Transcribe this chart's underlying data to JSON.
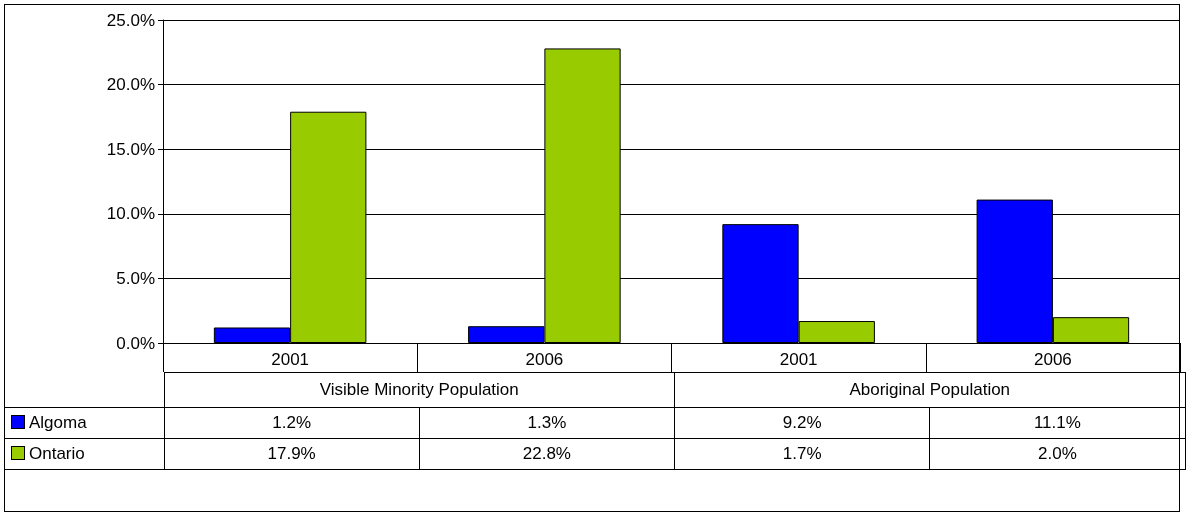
{
  "chart_data": {
    "type": "bar",
    "categories": [
      "2001",
      "2006",
      "2001",
      "2006"
    ],
    "series": [
      {
        "name": "Algoma",
        "color": "#0000ff",
        "values": [
          1.2,
          1.3,
          9.2,
          11.1
        ],
        "value_labels": [
          "1.2%",
          "1.3%",
          "9.2%",
          "11.1%"
        ]
      },
      {
        "name": "Ontario",
        "color": "#99cc00",
        "values": [
          17.9,
          22.8,
          1.7,
          2.0
        ],
        "value_labels": [
          "17.9%",
          "22.8%",
          "1.7%",
          "2.0%"
        ]
      }
    ],
    "annotations": [
      "Visible Minority Population",
      "Aboriginal Population"
    ],
    "ylim": [
      0,
      25
    ],
    "yticks": [
      {
        "value": 0,
        "label": "0.0%"
      },
      {
        "value": 5,
        "label": "5.0%"
      },
      {
        "value": 10,
        "label": "10.0%"
      },
      {
        "value": 15,
        "label": "15.0%"
      },
      {
        "value": 20,
        "label": "20.0%"
      },
      {
        "value": 25,
        "label": "25.0%"
      }
    ],
    "grid": "y",
    "legend": "bottom left"
  }
}
